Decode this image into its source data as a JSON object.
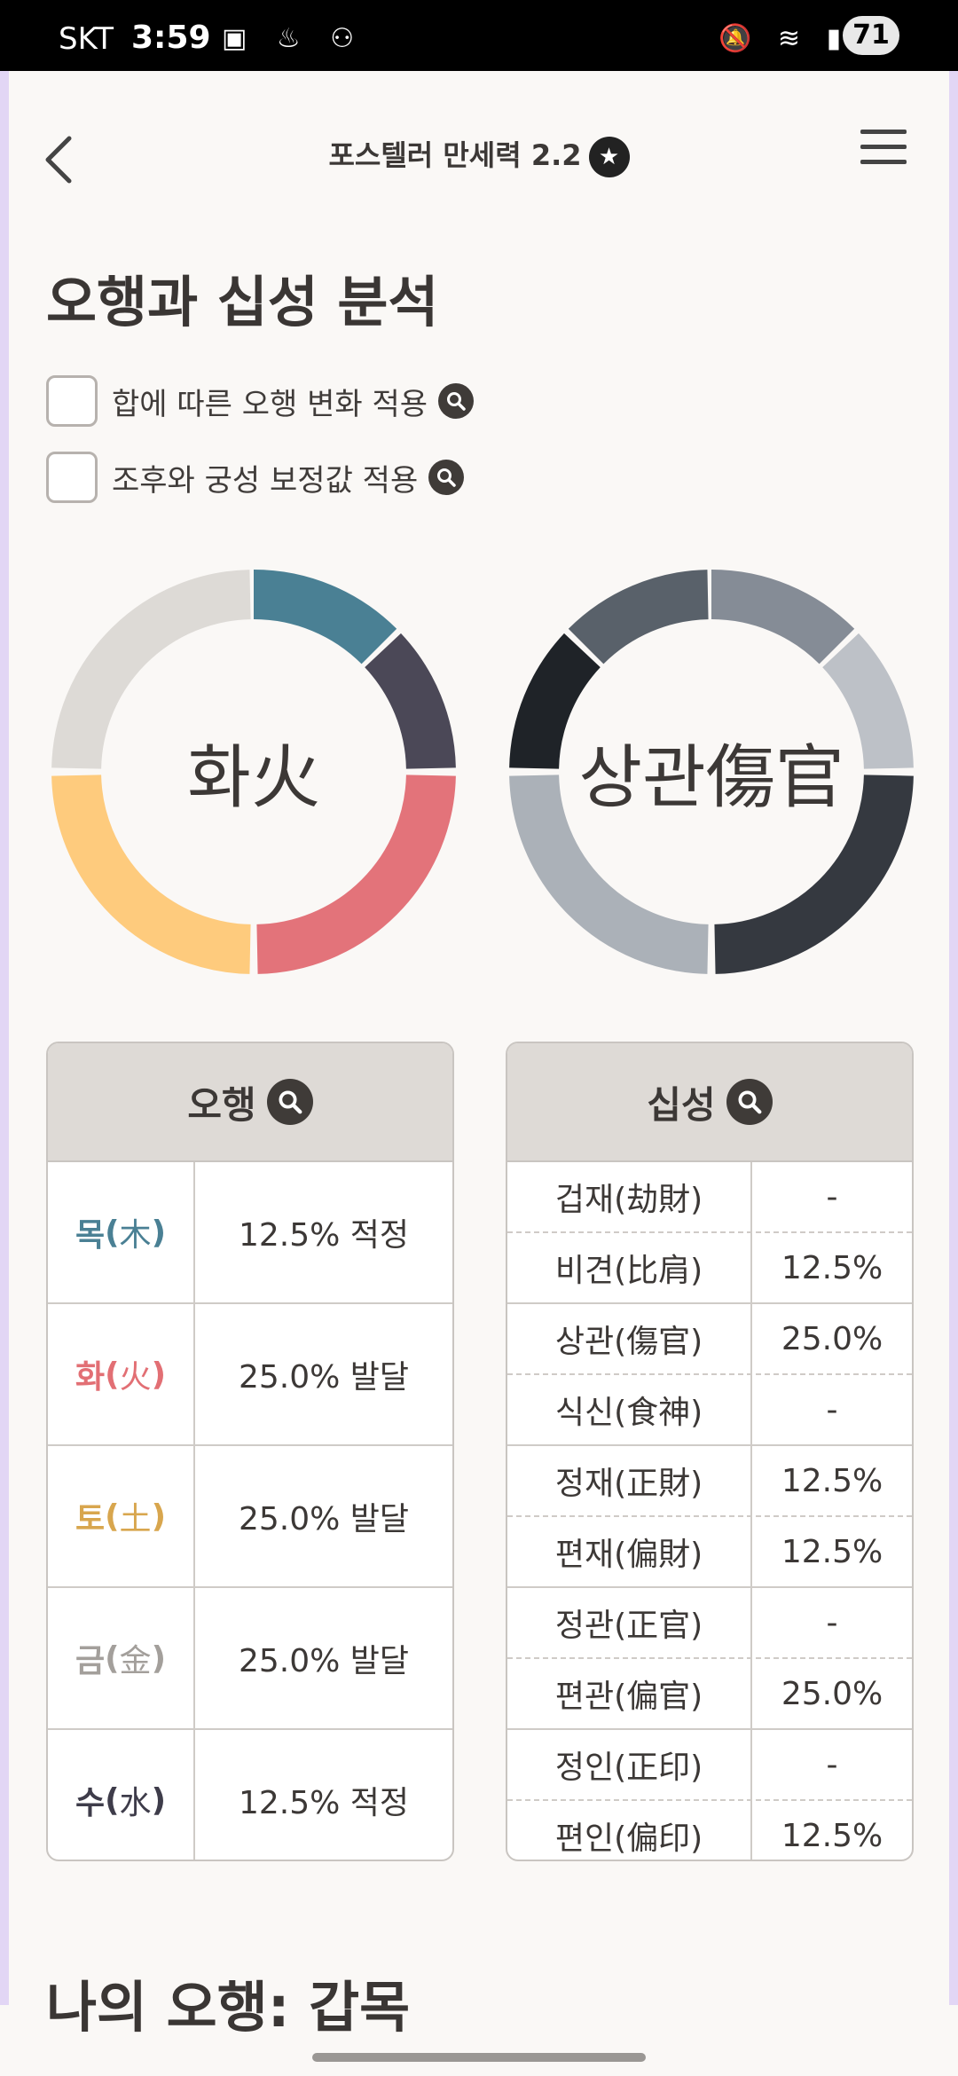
{
  "status_bar": {
    "carrier": "SKT",
    "time": "3:59",
    "battery": "71"
  },
  "header": {
    "title": "포스텔러 만세력 2.2"
  },
  "analysis": {
    "title": "오행과 십성 분석",
    "options": [
      {
        "label": "합에 따른 오행 변화 적용",
        "checked": false
      },
      {
        "label": "조후와 궁성 보정값 적용",
        "checked": false
      }
    ]
  },
  "donuts": {
    "element_center": "화火",
    "tenstar_center": "상관傷官"
  },
  "element_table": {
    "header": "오행",
    "rows": [
      {
        "hangul": "목",
        "hanja": "木",
        "value": "12.5% 적정",
        "color": "#4a8094"
      },
      {
        "hangul": "화",
        "hanja": "火",
        "value": "25.0% 발달",
        "color": "#e26f74"
      },
      {
        "hangul": "토",
        "hanja": "土",
        "value": "25.0% 발달",
        "color": "#d8a64e"
      },
      {
        "hangul": "금",
        "hanja": "金",
        "value": "25.0% 발달",
        "color": "#a39f9b"
      },
      {
        "hangul": "수",
        "hanja": "水",
        "value": "12.5% 적정",
        "color": "#3e3c4a"
      }
    ]
  },
  "tenstar_table": {
    "header": "십성",
    "rows": [
      {
        "name": "겁재(劫財)",
        "value": "-"
      },
      {
        "name": "비견(比肩)",
        "value": "12.5%"
      },
      {
        "name": "상관(傷官)",
        "value": "25.0%"
      },
      {
        "name": "식신(食神)",
        "value": "-"
      },
      {
        "name": "정재(正財)",
        "value": "12.5%"
      },
      {
        "name": "편재(偏財)",
        "value": "12.5%"
      },
      {
        "name": "정관(正官)",
        "value": "-"
      },
      {
        "name": "편관(偏官)",
        "value": "25.0%"
      },
      {
        "name": "정인(正印)",
        "value": "-"
      },
      {
        "name": "편인(偏印)",
        "value": "12.5%"
      }
    ]
  },
  "my_element": {
    "title": "나의 오행: 갑목"
  },
  "colors": {
    "wood": "#4a8094",
    "water": "#4b4857",
    "fire": "#e3737a",
    "earth": "#fecb7d",
    "metal": "#dddad6"
  }
}
